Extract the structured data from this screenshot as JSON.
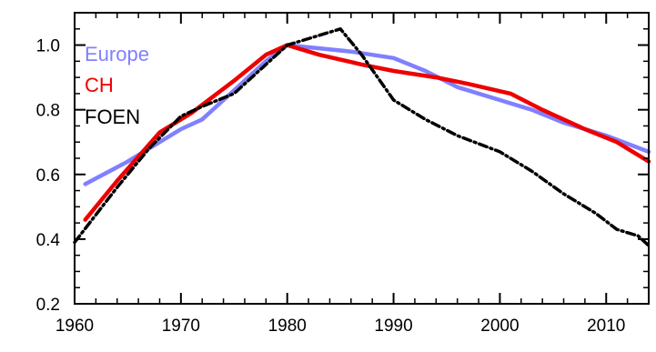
{
  "chart_data": {
    "type": "line",
    "title": "",
    "xlabel": "",
    "ylabel": "",
    "xlim": [
      1960,
      2014
    ],
    "ylim": [
      0.2,
      1.1
    ],
    "x_ticks": [
      1960,
      1970,
      1980,
      1990,
      2000,
      2010
    ],
    "y_ticks": [
      0.2,
      0.4,
      0.6,
      0.8,
      1.0
    ],
    "x_tick_labels": [
      "1960",
      "1970",
      "1980",
      "1990",
      "2000",
      "2010"
    ],
    "y_tick_labels": [
      "0.2",
      "0.4",
      "0.6",
      "0.8",
      "1.0"
    ],
    "grid": false,
    "legend_position": "top-left",
    "series": [
      {
        "name": "Europe",
        "color": "#8080ff",
        "style": "solid",
        "points": [
          [
            1961,
            0.57
          ],
          [
            1965,
            0.64
          ],
          [
            1970,
            0.74
          ],
          [
            1972,
            0.77
          ],
          [
            1975,
            0.86
          ],
          [
            1978,
            0.95
          ],
          [
            1980,
            1.0
          ],
          [
            1983,
            0.99
          ],
          [
            1986,
            0.98
          ],
          [
            1990,
            0.96
          ],
          [
            1993,
            0.92
          ],
          [
            1996,
            0.87
          ],
          [
            2000,
            0.83
          ],
          [
            2003,
            0.8
          ],
          [
            2006,
            0.76
          ],
          [
            2010,
            0.72
          ],
          [
            2014,
            0.67
          ]
        ]
      },
      {
        "name": "CH",
        "color": "#ee0000",
        "style": "solid",
        "points": [
          [
            1961,
            0.46
          ],
          [
            1964,
            0.58
          ],
          [
            1968,
            0.73
          ],
          [
            1971,
            0.79
          ],
          [
            1975,
            0.89
          ],
          [
            1978,
            0.97
          ],
          [
            1980,
            1.0
          ],
          [
            1983,
            0.97
          ],
          [
            1987,
            0.94
          ],
          [
            1990,
            0.92
          ],
          [
            1994,
            0.9
          ],
          [
            1997,
            0.88
          ],
          [
            2001,
            0.85
          ],
          [
            2004,
            0.8
          ],
          [
            2008,
            0.74
          ],
          [
            2011,
            0.7
          ],
          [
            2014,
            0.64
          ]
        ]
      },
      {
        "name": "FOEN",
        "color": "#000000",
        "style": "dashed",
        "points": [
          [
            1960,
            0.39
          ],
          [
            1964,
            0.56
          ],
          [
            1967,
            0.68
          ],
          [
            1970,
            0.78
          ],
          [
            1972,
            0.81
          ],
          [
            1975,
            0.85
          ],
          [
            1978,
            0.94
          ],
          [
            1980,
            1.0
          ],
          [
            1983,
            1.03
          ],
          [
            1985,
            1.05
          ],
          [
            1987,
            0.97
          ],
          [
            1990,
            0.83
          ],
          [
            1993,
            0.77
          ],
          [
            1996,
            0.72
          ],
          [
            2000,
            0.67
          ],
          [
            2003,
            0.61
          ],
          [
            2006,
            0.54
          ],
          [
            2009,
            0.48
          ],
          [
            2011,
            0.43
          ],
          [
            2013,
            0.41
          ],
          [
            2014,
            0.38
          ]
        ]
      }
    ]
  }
}
